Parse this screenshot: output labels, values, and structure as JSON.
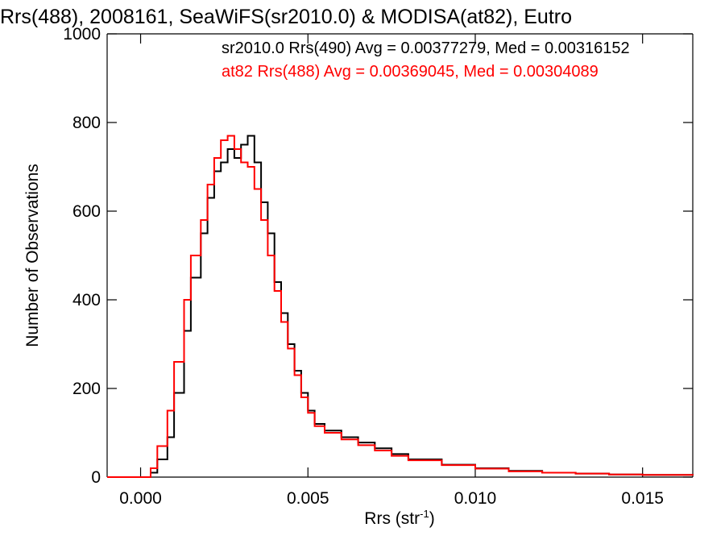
{
  "chart_data": {
    "type": "line",
    "title": "Rrs(488), 2008161, SeaWiFS(sr2010.0) & MODISA(at82), Eutro",
    "xlabel_main": "Rrs (str",
    "xlabel_sup": "-1",
    "xlabel_close": ")",
    "ylabel": "Number of Observations",
    "xlim": [
      -0.001,
      0.0165
    ],
    "ylim": [
      0,
      1000
    ],
    "xticks": [
      0.0,
      0.005,
      0.01,
      0.015
    ],
    "xtick_labels": [
      "0.000",
      "0.005",
      "0.010",
      "0.015"
    ],
    "yticks": [
      0,
      200,
      400,
      600,
      800,
      1000
    ],
    "ytick_labels": [
      "0",
      "200",
      "400",
      "600",
      "800",
      "1000"
    ],
    "grid": false,
    "legend_position": "top-right",
    "series": [
      {
        "name": "sr2010.0 Rrs(490) Avg = 0.00377279, Med = 0.00316152",
        "color": "#000000",
        "x": [
          -0.001,
          0.0,
          0.0003,
          0.0005,
          0.0008,
          0.001,
          0.0013,
          0.0015,
          0.0018,
          0.002,
          0.0022,
          0.0024,
          0.0026,
          0.0028,
          0.003,
          0.0032,
          0.0034,
          0.0036,
          0.0038,
          0.004,
          0.0042,
          0.0044,
          0.0046,
          0.0048,
          0.005,
          0.0052,
          0.0055,
          0.006,
          0.0065,
          0.007,
          0.0075,
          0.008,
          0.009,
          0.01,
          0.011,
          0.012,
          0.013,
          0.014,
          0.015,
          0.0165
        ],
        "values": [
          0,
          0,
          10,
          40,
          90,
          190,
          330,
          450,
          550,
          630,
          690,
          710,
          740,
          720,
          750,
          770,
          710,
          620,
          550,
          440,
          370,
          300,
          240,
          190,
          150,
          120,
          105,
          90,
          78,
          65,
          52,
          40,
          28,
          20,
          14,
          10,
          8,
          6,
          5,
          4
        ]
      },
      {
        "name": "at82 Rrs(488) Avg = 0.00369045, Med = 0.00304089",
        "color": "#ff0000",
        "x": [
          -0.001,
          0.0,
          0.0003,
          0.0005,
          0.0008,
          0.001,
          0.0013,
          0.0015,
          0.0018,
          0.002,
          0.0022,
          0.0024,
          0.0026,
          0.0028,
          0.003,
          0.0032,
          0.0034,
          0.0036,
          0.0038,
          0.004,
          0.0042,
          0.0044,
          0.0046,
          0.0048,
          0.005,
          0.0052,
          0.0055,
          0.006,
          0.0065,
          0.007,
          0.0075,
          0.008,
          0.009,
          0.01,
          0.011,
          0.012,
          0.013,
          0.014,
          0.015,
          0.0165
        ],
        "values": [
          0,
          0,
          20,
          70,
          150,
          260,
          400,
          500,
          580,
          660,
          720,
          760,
          770,
          740,
          710,
          700,
          650,
          580,
          500,
          420,
          350,
          290,
          230,
          180,
          145,
          115,
          100,
          85,
          72,
          60,
          48,
          38,
          27,
          19,
          13,
          10,
          8,
          6,
          5,
          4
        ]
      }
    ]
  }
}
